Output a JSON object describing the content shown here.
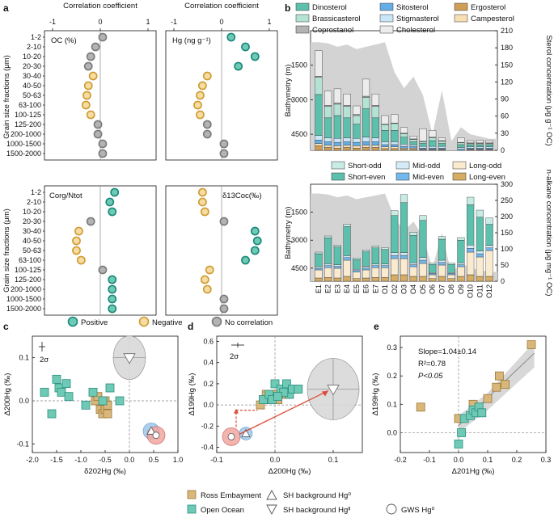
{
  "colors": {
    "positive_fill": "#6fcab5",
    "positive_stroke": "#17877a",
    "negative_fill": "#f5dca0",
    "negative_stroke": "#cf9a32",
    "none_fill": "#b3b3b3",
    "none_stroke": "#7a7a7a",
    "ross": "#d9b679",
    "ross_stroke": "#9a7a3a",
    "ocean": "#6fcab5",
    "ocean_stroke": "#2b8f82",
    "grey_area": "#d3d3d3",
    "dinosterol": "#5cc0ac",
    "brassicasterol": "#b4e3d6",
    "coprostanol": "#b3b3b3",
    "sitosterol": "#64aee6",
    "stigmasterol": "#c8e6f6",
    "cholesterol": "#ececec",
    "ergosterol": "#cf9f55",
    "campesterol": "#f7dfb4",
    "short_odd": "#c8ece5",
    "short_even": "#5cc0ac",
    "mid_odd": "#d5ecf8",
    "mid_even": "#72b8ec",
    "long_odd": "#faebd0",
    "long_even": "#d7ac63",
    "red": "#e04a3a"
  },
  "panel_labels": [
    "a",
    "b",
    "c",
    "d",
    "e"
  ],
  "chart_data": [
    {
      "id": "a",
      "type": "scatter",
      "title": "Correlation coefficient",
      "ylabel": "Grain size fractions (μm)",
      "xlim": [
        -1,
        1
      ],
      "xticks": [
        "-1",
        "0",
        "1"
      ],
      "categories": [
        "1-2",
        "2-10",
        "10-20",
        "20-30",
        "30-40",
        "40-50",
        "50-63",
        "63-100",
        "100-125",
        "125-200",
        "200-1000",
        "1000-1500",
        "1500-2000"
      ],
      "subplots": [
        {
          "label": "OC (%)",
          "values": [
            0.05,
            -0.1,
            -0.2,
            -0.25,
            -0.15,
            -0.25,
            -0.28,
            -0.3,
            -0.2,
            -0.05,
            -0.05,
            0.05,
            0.05
          ],
          "classes": [
            "none",
            "none",
            "none",
            "none",
            "neg",
            "neg",
            "neg",
            "neg",
            "neg",
            "none",
            "none",
            "none",
            "none"
          ]
        },
        {
          "label": "Hg (ng g⁻¹)",
          "values": [
            0.2,
            0.5,
            0.7,
            0.35,
            -0.3,
            -0.4,
            -0.45,
            -0.5,
            -0.45,
            -0.3,
            -0.3,
            0.05,
            0.05
          ],
          "classes": [
            "pos",
            "pos",
            "pos",
            "pos",
            "neg",
            "neg",
            "neg",
            "neg",
            "neg",
            "none",
            "none",
            "none",
            "none"
          ]
        },
        {
          "label": "Corg/Ntot",
          "values": [
            0.3,
            0.2,
            0.25,
            -0.2,
            -0.45,
            -0.5,
            -0.5,
            -0.4,
            0.05,
            0.25,
            0.25,
            0.25,
            0.25
          ],
          "classes": [
            "pos",
            "pos",
            "pos",
            "none",
            "neg",
            "neg",
            "neg",
            "neg",
            "none",
            "pos",
            "pos",
            "pos",
            "pos"
          ]
        },
        {
          "label": "δ13Coc(‰)",
          "values": [
            -0.4,
            -0.4,
            -0.35,
            0.05,
            0.7,
            0.75,
            0.7,
            0.5,
            -0.25,
            -0.35,
            -0.3,
            0.05,
            0.05
          ],
          "classes": [
            "neg",
            "neg",
            "neg",
            "none",
            "pos",
            "pos",
            "pos",
            "pos",
            "neg",
            "neg",
            "neg",
            "none",
            "none"
          ]
        }
      ],
      "legend": [
        "Positive",
        "Negative",
        "No correlation"
      ]
    },
    {
      "id": "b-top",
      "type": "bar",
      "ylabel": "Bathymetry (m)",
      "y2label": "Sterol concentration (μg g⁻¹ OC)",
      "yticks": [
        "1500",
        "3000",
        "4500"
      ],
      "y2lim": [
        0,
        210
      ],
      "y2ticks": [
        "0",
        "30",
        "60",
        "90",
        "120",
        "150",
        "180",
        "210"
      ],
      "categories": [
        "E1",
        "E2",
        "E3",
        "E4",
        "E5",
        "E6",
        "E7",
        "O1",
        "O2",
        "O3",
        "O4",
        "O5",
        "O6",
        "O7",
        "O8",
        "O9",
        "O10",
        "O11",
        "O12"
      ],
      "bathymetry": [
        500,
        550,
        700,
        600,
        800,
        700,
        600,
        500,
        1800,
        2500,
        2000,
        2800,
        4500,
        2600,
        4800,
        4200,
        4500,
        4600,
        4700
      ],
      "legend": [
        "Dinosterol",
        "Brassicasterol",
        "Coprostanol",
        "Sitosterol",
        "Stigmasterol",
        "Ergosterol",
        "Campesterol",
        "Cholesterol"
      ],
      "series": [
        {
          "name": "Ergosterol",
          "values": [
            8,
            5,
            4,
            5,
            4,
            5,
            5,
            3,
            3,
            2,
            2,
            1,
            1,
            1,
            0,
            0,
            1,
            1,
            1
          ]
        },
        {
          "name": "Campesterol",
          "values": [
            4,
            4,
            4,
            4,
            4,
            4,
            4,
            3,
            3,
            2,
            2,
            1,
            1,
            1,
            0,
            0,
            1,
            1,
            1
          ]
        },
        {
          "name": "Sitosterol",
          "values": [
            6,
            6,
            6,
            6,
            6,
            6,
            6,
            4,
            4,
            3,
            3,
            2,
            2,
            2,
            0,
            2,
            2,
            2,
            2
          ]
        },
        {
          "name": "Stigmasterol",
          "values": [
            8,
            7,
            7,
            7,
            7,
            8,
            7,
            5,
            5,
            4,
            3,
            3,
            3,
            3,
            0,
            3,
            2,
            2,
            2
          ]
        },
        {
          "name": "Dinosterol",
          "values": [
            72,
            35,
            40,
            35,
            25,
            50,
            35,
            20,
            20,
            12,
            5,
            5,
            10,
            5,
            0,
            5,
            4,
            4,
            4
          ]
        },
        {
          "name": "Brassicasterol",
          "values": [
            30,
            20,
            20,
            20,
            15,
            20,
            20,
            10,
            12,
            6,
            4,
            3,
            5,
            4,
            0,
            3,
            2,
            2,
            2
          ]
        },
        {
          "name": "Coprostanol",
          "values": [
            2,
            2,
            2,
            2,
            2,
            2,
            2,
            1,
            1,
            1,
            1,
            1,
            1,
            1,
            0,
            1,
            1,
            1,
            1
          ]
        },
        {
          "name": "Cholesterol",
          "values": [
            45,
            25,
            25,
            20,
            15,
            30,
            20,
            15,
            15,
            10,
            5,
            22,
            12,
            5,
            0,
            8,
            4,
            5,
            4
          ]
        }
      ]
    },
    {
      "id": "b-bottom",
      "type": "bar",
      "ylabel": "Bathymetry (m)",
      "y2label": "n-alkane concentration (μg mg⁻¹ OC)",
      "yticks": [
        "1500",
        "3000",
        "4500"
      ],
      "y2lim": [
        0,
        300
      ],
      "y2ticks": [
        "0",
        "50",
        "100",
        "150",
        "200",
        "250",
        "300"
      ],
      "categories": [
        "E1",
        "E2",
        "E3",
        "E4",
        "E5",
        "E6",
        "E7",
        "O1",
        "O2",
        "O3",
        "O4",
        "O5",
        "O6",
        "O7",
        "O8",
        "O9",
        "O10",
        "O11",
        "O12"
      ],
      "bathymetry": [
        500,
        550,
        700,
        600,
        800,
        700,
        600,
        500,
        1800,
        2500,
        2000,
        2800,
        4500,
        2600,
        4800,
        4200,
        4500,
        4600,
        4700
      ],
      "legend": [
        "Short-odd",
        "Short-even",
        "Mid-odd",
        "Mid-even",
        "Long-odd",
        "Long-even"
      ],
      "series": [
        {
          "name": "Long-even",
          "values": [
            10,
            12,
            10,
            15,
            8,
            10,
            12,
            12,
            20,
            20,
            15,
            15,
            8,
            15,
            8,
            15,
            20,
            15,
            15
          ]
        },
        {
          "name": "Long-odd",
          "values": [
            25,
            30,
            30,
            50,
            20,
            25,
            30,
            30,
            50,
            50,
            30,
            40,
            12,
            35,
            12,
            30,
            70,
            60,
            80
          ]
        },
        {
          "name": "Mid-even",
          "values": [
            5,
            6,
            6,
            8,
            5,
            6,
            6,
            6,
            10,
            10,
            6,
            10,
            4,
            8,
            4,
            6,
            12,
            10,
            8
          ]
        },
        {
          "name": "Mid-odd",
          "values": [
            5,
            6,
            5,
            6,
            4,
            5,
            5,
            5,
            8,
            8,
            6,
            8,
            3,
            7,
            3,
            6,
            10,
            8,
            8
          ]
        },
        {
          "name": "Short-even",
          "values": [
            40,
            80,
            55,
            90,
            30,
            45,
            50,
            45,
            115,
            155,
            85,
            115,
            25,
            65,
            25,
            70,
            125,
            105,
            65
          ]
        },
        {
          "name": "Short-odd",
          "values": [
            5,
            6,
            6,
            8,
            5,
            6,
            6,
            6,
            15,
            25,
            10,
            15,
            4,
            8,
            4,
            8,
            23,
            22,
            20
          ]
        }
      ]
    },
    {
      "id": "c",
      "type": "scatter",
      "xlabel": "δ202Hg (‰)",
      "ylabel": "Δ200Hg (‰)",
      "xlim": [
        -2.0,
        1.0
      ],
      "ylim": [
        -0.12,
        0.15
      ],
      "xticks": [
        "-2.0",
        "-1.5",
        "-1.0",
        "-0.5",
        "0.0",
        "0.5",
        "1.0"
      ],
      "yticks": [
        "-0.1",
        "0.0",
        "0.1"
      ],
      "annotation": "2σ",
      "ross": [
        [
          -0.7,
          0.0
        ],
        [
          -0.6,
          -0.02
        ],
        [
          -0.55,
          -0.03
        ],
        [
          -0.5,
          -0.02
        ],
        [
          -0.45,
          -0.03
        ],
        [
          -0.65,
          0.01
        ],
        [
          -0.5,
          0.0
        ],
        [
          -0.45,
          -0.01
        ]
      ],
      "ocean": [
        [
          -1.75,
          0.02
        ],
        [
          -1.6,
          -0.03
        ],
        [
          -1.5,
          0.05
        ],
        [
          -1.45,
          0.03
        ],
        [
          -1.4,
          0.02
        ],
        [
          -1.3,
          0.04
        ],
        [
          -1.25,
          0.01
        ],
        [
          -0.9,
          -0.01
        ],
        [
          -0.75,
          0.02
        ],
        [
          -0.55,
          0.0
        ],
        [
          -0.4,
          0.03
        ],
        [
          -0.2,
          0.0
        ]
      ],
      "sh_hg0": [
        0.45,
        -0.07
      ],
      "sh_hg2": [
        0.0,
        0.1
      ],
      "gws_hg0": [
        0.55,
        -0.08
      ]
    },
    {
      "id": "d",
      "type": "scatter",
      "xlabel": "Δ200Hg (‰)",
      "ylabel": "Δ199Hg (‰)",
      "xlim": [
        -0.1,
        0.15
      ],
      "ylim": [
        -0.45,
        0.65
      ],
      "xticks": [
        "-0.1",
        "0.0",
        "0.1"
      ],
      "yticks": [
        "-0.4",
        "-0.2",
        "0.0",
        "0.2",
        "0.4",
        "0.6"
      ],
      "annotation": "2σ",
      "ross": [
        [
          -0.02,
          0.05
        ],
        [
          -0.015,
          0.1
        ],
        [
          -0.01,
          0.05
        ],
        [
          0.0,
          0.1
        ],
        [
          0.01,
          0.1
        ],
        [
          0.015,
          0.15
        ],
        [
          0.02,
          0.1
        ],
        [
          0.03,
          0.15
        ],
        [
          0.035,
          0.15
        ],
        [
          -0.025,
          0.0
        ],
        [
          0.005,
          0.05
        ]
      ],
      "ocean": [
        [
          -0.02,
          0.05
        ],
        [
          -0.01,
          0.1
        ],
        [
          0.0,
          0.2
        ],
        [
          0.01,
          0.15
        ],
        [
          0.02,
          0.2
        ],
        [
          0.025,
          0.1
        ],
        [
          0.03,
          0.15
        ],
        [
          0.04,
          0.15
        ],
        [
          -0.005,
          0.05
        ],
        [
          0.015,
          0.12
        ],
        [
          0.005,
          0.08
        ]
      ],
      "sh_hg0": [
        -0.05,
        -0.27
      ],
      "sh_hg2": [
        0.1,
        0.15
      ],
      "gws_hg0": [
        -0.075,
        -0.3
      ]
    },
    {
      "id": "e",
      "type": "scatter",
      "xlabel": "Δ201Hg (‰)",
      "ylabel": "Δ199Hg (‰)",
      "xlim": [
        -0.2,
        0.3
      ],
      "ylim": [
        -0.07,
        0.34
      ],
      "xticks": [
        "-0.2",
        "-0.1",
        "0.0",
        "0.1",
        "0.2",
        "0.3"
      ],
      "yticks": [
        "0.0",
        "0.1",
        "0.2",
        "0.3"
      ],
      "stats": [
        "Slope=1.04±0.14",
        "R²=0.78",
        "P<0.05"
      ],
      "ross": [
        [
          -0.13,
          0.09
        ],
        [
          0.0,
          0.05
        ],
        [
          0.05,
          0.1
        ],
        [
          0.1,
          0.12
        ],
        [
          0.13,
          0.16
        ],
        [
          0.14,
          0.2
        ],
        [
          0.16,
          0.17
        ],
        [
          0.25,
          0.31
        ]
      ],
      "ocean": [
        [
          0.0,
          -0.04
        ],
        [
          0.01,
          0.0
        ],
        [
          0.02,
          0.05
        ],
        [
          0.04,
          0.06
        ],
        [
          0.05,
          0.08
        ],
        [
          0.06,
          0.07
        ],
        [
          0.07,
          0.09
        ],
        [
          0.08,
          0.07
        ]
      ]
    }
  ],
  "bottom_legend": {
    "ross": "Ross Embayment",
    "ocean": "Open Ocean",
    "sh_hg0": "SH background Hg⁰",
    "sh_hg2": "SH background Hgᴵᴵ",
    "gws_hg0": "GWS Hg⁰"
  }
}
